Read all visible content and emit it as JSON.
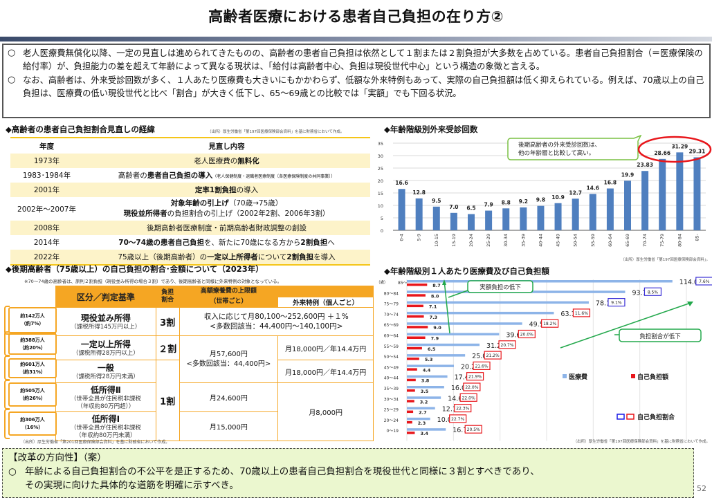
{
  "title": "高齢者医療における患者自己負担の在り方②",
  "summary": {
    "bullet": "○",
    "items": [
      "老人医療費無償化以降、一定の見直しは進められてきたものの、高齢者の患者自己負担は依然として１割または２割負担が大多数を占めている。患者自己負担割合（＝医療保険の給付率）が、負担能力の差を超えて年齢によって異なる現状は、「給付は高齢者中心、負担は現役世代中心」という構造の象徴と言える。",
      "なお、高齢者は、外来受診回数が多く、１人あたり医療費も大きいにもかかわらず、低額な外来特例もあって、実際の自己負担額は低く抑えられている。例えば、70歳以上の自己負担は、医療費の低い現役世代と比べ「割合」が大きく低下し、65～69歳との比較では「実額」でも下回る状況。"
    ]
  },
  "history": {
    "heading": "◆高齢者の患者自己負担割合見直しの経緯",
    "source": "（出所）厚生労働省「第197回医療保険部会資料」を基に財務省において作成。",
    "columns": [
      "年度",
      "見直し内容"
    ],
    "rows": [
      {
        "year": "1973年",
        "pre": "老人医療費の",
        "bold": "無料化",
        "post": "",
        "small": ""
      },
      {
        "year": "1983･1984年",
        "pre": "高齢者の",
        "bold": "患者自己負担の導入",
        "post": "",
        "small": "（老人保健制度・退職者医療制度〔各医療保険制度の共同事業〕）"
      },
      {
        "year": "2001年",
        "pre": "",
        "bold": "定率1割負担",
        "post": "の導入",
        "small": ""
      },
      {
        "year": "2002年～2007年",
        "line1_bold": "対象年齢の引上げ",
        "line1_post": "（70歳→75歳）",
        "line2_bold": "現役並所得者",
        "line2_post": "の負担割合の引上げ（2002年2割、2006年3割）"
      },
      {
        "year": "2008年",
        "pre": "後期高齢者医療制度・前期高齢者財政調整の創設",
        "bold": "",
        "post": "",
        "small": ""
      },
      {
        "year": "2014年",
        "pre": "",
        "bold": "70～74歳の患者自己負担",
        "post": "を、新たに70歳になる方から",
        "bold2": "2割負担",
        "post2": "へ"
      },
      {
        "year": "2022年",
        "pre": "75歳以上（後期高齢者）の",
        "bold": "一定以上所得者",
        "post": "について",
        "bold2": "2割負担",
        "post2": "を導入"
      }
    ]
  },
  "burden": {
    "heading": "◆後期高齢者（75歳以上）の自己負担の割合･金額について（2023年）",
    "note": "※70～74歳の高齢者は、原則２割負担（現役並み所得の場合３割）であり、後期高齢者と同様に外来特例の対象となっている。",
    "header": {
      "category": "区分／判定基準",
      "ratio": "負担割合",
      "ratio_l1": "負担",
      "ratio_l2": "割合",
      "limit_l1": "高額療養費の上限額",
      "limit_l2": "（世帯ごと）",
      "outpatient": "外来特例（個人ごと）"
    },
    "rows": [
      {
        "pop": "約142万人",
        "pct": "（約7%）",
        "cat": "現役並み所得",
        "sub": "（課税所得145万円以上）",
        "ratio": "3割",
        "limit": "収入に応じて月80,100～252,600円 ＋１%",
        "limit2": "<多数回該当：44,400円～140,100円>"
      },
      {
        "pop": "約388万人",
        "pct": "（約20%）",
        "cat": "一定以上所得",
        "sub": "（課税所得28万円以上）",
        "ratio": "２割",
        "limit": "月57,600円",
        "limit2": "<多数回該当：44,400円>",
        "outpatient": "月18,000円／年14.4万円"
      },
      {
        "pop": "約601万人",
        "pct": "（約31%）",
        "cat": "一般",
        "sub": "（課税所得28万円未満）",
        "ratio": "1割",
        "outpatient": "月18,000円／年14.4万円"
      },
      {
        "pop": "約505万人",
        "pct": "（約26%）",
        "cat": "低所得Ⅱ",
        "sub": "（世帯全員が住民税非課税",
        "sub2": "（年収約80万円超））",
        "limit": "月24,600円",
        "outpatient": "月8,000円"
      },
      {
        "pop": "約306万人",
        "pct": "（16%）",
        "cat": "低所得Ⅰ",
        "sub": "（世帯全員が住民税非課税",
        "sub2": "（年収約80万円未満）",
        "limit": "月15,000円"
      }
    ],
    "source": "（出所）厚生労働省「第201回医療保険部会資料」を基に財務省において作成。"
  },
  "chart_data": [
    {
      "type": "bar",
      "title": "◆年齢階級別外来受診回数",
      "categories": [
        "0-4",
        "5-9",
        "10-15",
        "15-19",
        "20-24",
        "25-29",
        "30-34",
        "35-39",
        "40-44",
        "45-49",
        "50-54",
        "55-59",
        "60-64",
        "65-69",
        "70-74",
        "75-79",
        "80-84",
        "85-"
      ],
      "values": [
        16.6,
        12.8,
        9.5,
        7.0,
        6.5,
        7.9,
        8.8,
        9.2,
        9.8,
        10.9,
        12.7,
        14.6,
        16.8,
        19.9,
        23.83,
        28.66,
        31.29,
        29.31
      ],
      "value_labels": [
        "16.6",
        "12.8",
        "9.5",
        "7.0",
        "6.5",
        "7.9",
        "8.8",
        "9.2",
        "9.8",
        "10.9",
        "12.7",
        "14.6",
        "16.8",
        "19.9",
        "23.83",
        "28.66",
        "31.29",
        "29.31"
      ],
      "xlabel": "",
      "ylabel": "",
      "ylim": [
        0,
        35
      ],
      "yticks": [
        0,
        5,
        10,
        15,
        20,
        25,
        30,
        35
      ],
      "grid": true,
      "color": "#4f7fbf",
      "callout": "後期高齢者の外来受診回数は、他の年齢層と比較して高い。",
      "callout_l1": "後期高齢者の外来受診回数は、",
      "callout_l2": "他の年齢層と比較して高い。",
      "source": "（出所）厚生労働省「第197回医療保険部会資料」。"
    },
    {
      "type": "bar",
      "orientation": "horizontal",
      "title": "◆年齢階級別１人あたり医療費及び自己負担額",
      "y_unit": "（歳）",
      "x_unit": "（万円）",
      "categories": [
        "85～",
        "80～84",
        "75～79",
        "70～74",
        "65～69",
        "60～64",
        "55～59",
        "50～54",
        "45～49",
        "40～44",
        "35～39",
        "30～34",
        "25～29",
        "20～24",
        "0～19"
      ],
      "series": [
        {
          "name": "医療費",
          "color": "#8db4e8",
          "values": [
            114.0,
            93.7,
            78.1,
            63.1,
            49.5,
            39.6,
            31.2,
            25.0,
            20.2,
            17.4,
            16.0,
            14.6,
            12.1,
            10.0,
            16.7
          ]
        },
        {
          "name": "自己負担額",
          "color": "#e8161b",
          "values": [
            8.7,
            8.0,
            7.1,
            7.3,
            9.0,
            7.9,
            6.5,
            5.3,
            4.4,
            3.8,
            3.5,
            3.2,
            2.7,
            2.3,
            3.4
          ]
        }
      ],
      "burden_ratio": [
        "7.6%",
        "8.5%",
        "9.1%",
        "11.6%",
        "18.2%",
        "20.0%",
        "20.7%",
        "21.2%",
        "21.6%",
        "21.9%",
        "22.0%",
        "22.0%",
        "22.3%",
        "22.7%",
        "20.5%"
      ],
      "burden_ratio_colors": [
        "blue",
        "blue",
        "blue",
        "red",
        "red",
        "red",
        "red",
        "red",
        "red",
        "red",
        "red",
        "red",
        "red",
        "red",
        "red"
      ],
      "xlim": [
        0,
        120
      ],
      "xticks": [
        "0.0",
        "20.0",
        "40.0",
        "60.0",
        "80.0",
        "100.0",
        "120.0"
      ],
      "legend": [
        "医療費",
        "自己負担額",
        "自己負担割合"
      ],
      "annotations": [
        "実額負担の低下",
        "負担割合が低下"
      ],
      "source": "（出所）厚生労働省「第197回医療保険部会資料」を基に財務省において作成。"
    }
  ],
  "reform": {
    "heading": "【改革の方向性】（案）",
    "bullet": "○",
    "text_l1": "年齢による自己負担割合の不公平を是正するため、70歳以上の患者自己負担割合を現役世代と同様に３割とすべきであり、",
    "text_l2": "その実現に向けた具体的な道筋を明確に示すべき。"
  },
  "page_number": "52"
}
